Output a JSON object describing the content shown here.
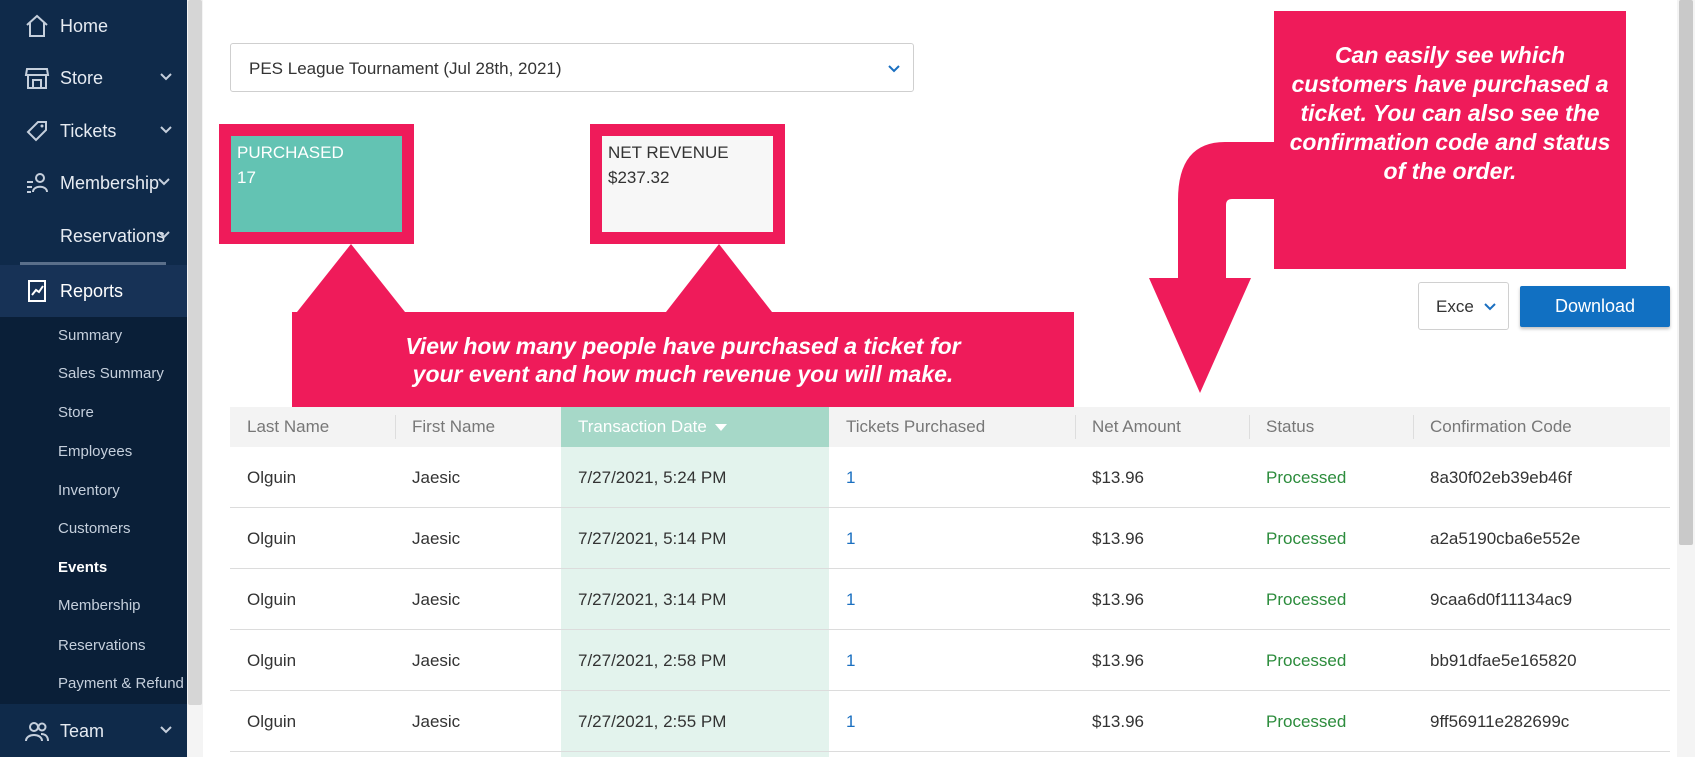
{
  "sidebar": {
    "items": [
      {
        "label": "Home",
        "icon": "home-icon"
      },
      {
        "label": "Store",
        "icon": "store-icon"
      },
      {
        "label": "Tickets",
        "icon": "ticket-icon"
      },
      {
        "label": "Membership",
        "icon": "membership-icon"
      },
      {
        "label": "Reservations",
        "icon": ""
      },
      {
        "label": "Reports",
        "icon": "reports-icon"
      },
      {
        "label": "Team",
        "icon": "team-icon"
      }
    ],
    "sub_items": [
      "Summary",
      "Sales Summary",
      "Store",
      "Employees",
      "Inventory",
      "Customers",
      "Events",
      "Membership",
      "Reservations",
      "Payment & Refund"
    ],
    "active_sub_item": "Events"
  },
  "event_select": {
    "value": "PES League Tournament (Jul 28th, 2021)"
  },
  "stats": {
    "purchased": {
      "label": "PURCHASED",
      "value": "17"
    },
    "net_revenue": {
      "label": "NET REVENUE",
      "value": "$237.32"
    }
  },
  "callouts": {
    "top": "Can easily see which customers have purchased a ticket. You can also see the confirmation code and status of the order.",
    "middle": "View how many people have purchased a ticket for your event and how much revenue you will make."
  },
  "export": {
    "format": "Exce",
    "download_label": "Download"
  },
  "table": {
    "columns": [
      "Last Name",
      "First Name",
      "Transaction Date",
      "Tickets Purchased",
      "Net Amount",
      "Status",
      "Confirmation Code"
    ],
    "sorted_column": "Transaction Date",
    "rows": [
      [
        "Olguin",
        "Jaesic",
        "7/27/2021, 5:24 PM",
        "1",
        "$13.96",
        "Processed",
        "8a30f02eb39eb46f"
      ],
      [
        "Olguin",
        "Jaesic",
        "7/27/2021, 5:14 PM",
        "1",
        "$13.96",
        "Processed",
        "a2a5190cba6e552e"
      ],
      [
        "Olguin",
        "Jaesic",
        "7/27/2021, 3:14 PM",
        "1",
        "$13.96",
        "Processed",
        "9caa6d0f11134ac9"
      ],
      [
        "Olguin",
        "Jaesic",
        "7/27/2021, 2:58 PM",
        "1",
        "$13.96",
        "Processed",
        "bb91dfae5e165820"
      ],
      [
        "Olguin",
        "Jaesic",
        "7/27/2021, 2:55 PM",
        "1",
        "$13.96",
        "Processed",
        "9ff56911e282699c"
      ]
    ]
  },
  "colors": {
    "sidebar": "#0f2a4a",
    "callout": "#ef1b5a",
    "accent_teal": "#63c3b3",
    "primary_button": "#1170c2",
    "status_processed": "#2c8c3c"
  }
}
